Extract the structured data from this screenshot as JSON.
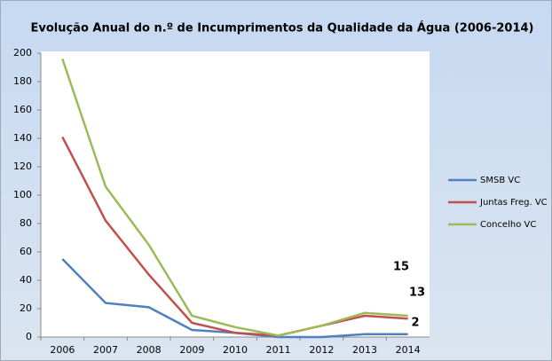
{
  "chart_data": {
    "type": "line",
    "title": "Evolução Anual do n.º de Incumprimentos da Qualidade da Água (2006-2014)",
    "categories": [
      "2006",
      "2007",
      "2008",
      "2009",
      "2010",
      "2011",
      "2012",
      "2013",
      "2014"
    ],
    "series": [
      {
        "name": "SMSB VC",
        "color": "#4f81bd",
        "values": [
          55,
          24,
          21,
          5,
          3,
          0,
          0,
          2,
          2
        ]
      },
      {
        "name": "Juntas Freg. VC",
        "color": "#c0504d",
        "values": [
          141,
          82,
          44,
          10,
          3,
          1,
          8,
          15,
          13
        ]
      },
      {
        "name": "Concelho VC",
        "color": "#9bbb59",
        "values": [
          196,
          106,
          65,
          15,
          7,
          1,
          8,
          17,
          15
        ]
      }
    ],
    "ylim": [
      0,
      200
    ],
    "yticks": [
      0,
      20,
      40,
      60,
      80,
      100,
      120,
      140,
      160,
      180,
      200
    ],
    "grid": false,
    "legend": "right"
  }
}
